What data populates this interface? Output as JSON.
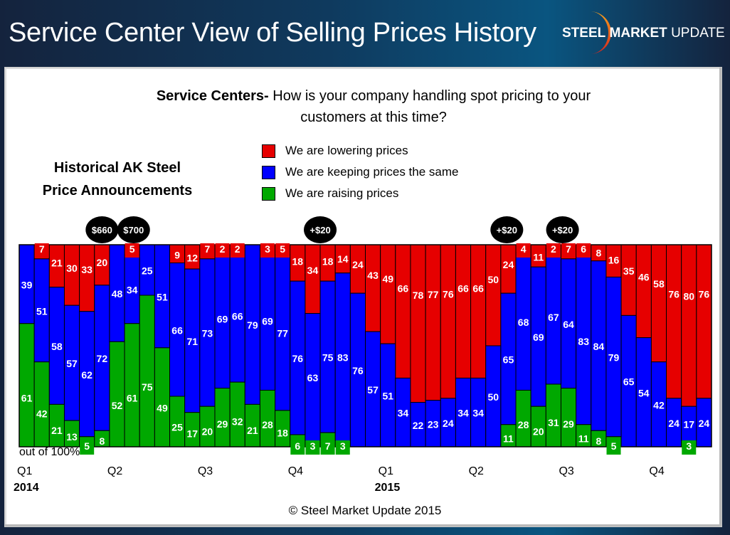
{
  "header": {
    "title": "Service Center View of Selling Prices History",
    "logo_bold": "STEEL",
    "logo_mid": "MARKET",
    "logo_end": "UPDATE"
  },
  "question": {
    "bold": "Service Centers-",
    "text": " How is your company handling spot pricing to your customers at this time?"
  },
  "annotation_title_line1": "Historical AK Steel",
  "annotation_title_line2": "Price Announcements",
  "out_of_label": "out of 100%",
  "copyright": "© Steel Market Update 2015",
  "colors": {
    "lowering": "#e60000",
    "same": "#0000ff",
    "raising": "#00a800",
    "badge": "#000000"
  },
  "chart_data": {
    "type": "bar",
    "stacked": true,
    "normalized_total": 100,
    "title": "Service Centers- How is your company handling spot pricing to your customers at this time?",
    "ylabel": "out of 100%",
    "ylim": [
      0,
      100
    ],
    "legend": [
      {
        "key": "lowering",
        "label": "We are lowering prices"
      },
      {
        "key": "same",
        "label": "We are keeping prices the same"
      },
      {
        "key": "raising",
        "label": "We are raising prices"
      }
    ],
    "legend_position": "top-center",
    "quarter_ticks": [
      {
        "label": "Q1",
        "bar_index": 0
      },
      {
        "label": "Q2",
        "bar_index": 6
      },
      {
        "label": "Q3",
        "bar_index": 12
      },
      {
        "label": "Q4",
        "bar_index": 18
      },
      {
        "label": "Q1",
        "bar_index": 24
      },
      {
        "label": "Q2",
        "bar_index": 30
      },
      {
        "label": "Q3",
        "bar_index": 36
      },
      {
        "label": "Q4",
        "bar_index": 42
      }
    ],
    "year_ticks": [
      {
        "label": "2014",
        "bar_index": 0
      },
      {
        "label": "2015",
        "bar_index": 24
      }
    ],
    "series": [
      {
        "name": "We are lowering prices",
        "key": "lowering",
        "values": [
          0,
          7,
          21,
          30,
          33,
          20,
          0,
          5,
          0,
          0,
          9,
          12,
          7,
          2,
          2,
          0,
          3,
          5,
          18,
          34,
          18,
          14,
          24,
          43,
          49,
          66,
          78,
          77,
          76,
          66,
          66,
          50,
          24,
          4,
          11,
          2,
          7,
          6,
          8,
          16,
          35,
          46,
          58,
          76,
          80,
          76
        ]
      },
      {
        "name": "We are keeping prices the same",
        "key": "same",
        "values": [
          39,
          51,
          58,
          57,
          62,
          72,
          48,
          34,
          25,
          51,
          66,
          71,
          73,
          69,
          66,
          79,
          69,
          77,
          76,
          63,
          75,
          83,
          76,
          57,
          51,
          34,
          22,
          23,
          24,
          34,
          34,
          50,
          65,
          68,
          69,
          67,
          64,
          83,
          84,
          79,
          65,
          54,
          42,
          24,
          17,
          24
        ]
      },
      {
        "name": "We are raising prices",
        "key": "raising",
        "values": [
          61,
          42,
          21,
          13,
          5,
          8,
          52,
          61,
          75,
          49,
          25,
          17,
          20,
          29,
          32,
          21,
          28,
          18,
          6,
          3,
          7,
          3,
          0,
          0,
          0,
          0,
          0,
          0,
          0,
          0,
          0,
          0,
          11,
          28,
          20,
          31,
          29,
          11,
          8,
          5,
          0,
          0,
          0,
          0,
          3,
          0
        ]
      }
    ],
    "annotations": [
      {
        "label": "$660",
        "bar_position": 5.0
      },
      {
        "label": "$700",
        "bar_position": 7.1
      },
      {
        "label": "+$20",
        "bar_position": 19.5
      },
      {
        "label": "+$20",
        "bar_position": 31.9
      },
      {
        "label": "+$20",
        "bar_position": 35.6
      }
    ]
  }
}
